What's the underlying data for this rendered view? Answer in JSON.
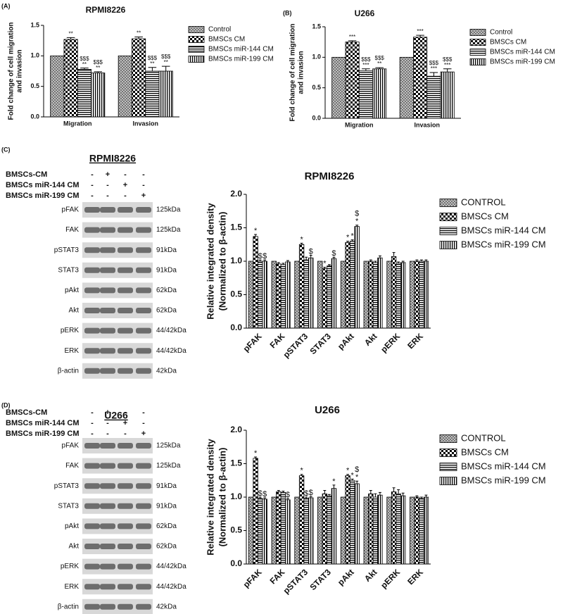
{
  "panels": [
    "(A)",
    "(B)",
    "(C)",
    "(D)"
  ],
  "chart_data": [
    {
      "type": "bar",
      "title": "RPMI8226",
      "ylabel": [
        "Fold change of cell migration",
        "and invasion"
      ],
      "categories": [
        "Migration",
        "Invasion"
      ],
      "ylim": [
        0,
        1.5
      ],
      "yticks": [
        {
          "value": 0,
          "label": "0.0"
        },
        0.5,
        {
          "value": 1,
          "label": "1.0"
        },
        1.5
      ],
      "legend": "right",
      "series": [
        {
          "name": "Control",
          "color": "#555555",
          "pattern": "crosshatch",
          "values": [
            1.0,
            1.0
          ]
        },
        {
          "name": "BMSCs CM",
          "color": "#000000",
          "pattern": "checker",
          "values": [
            1.27,
            1.28
          ],
          "errors": [
            0.03,
            0.03
          ],
          "annotations": [
            [
              "**"
            ],
            [
              "**"
            ]
          ]
        },
        {
          "name": "BMSCs miR-144 CM",
          "color": "#000000",
          "pattern": "hlines",
          "values": [
            0.78,
            0.75
          ],
          "errors": [
            0.02,
            0.06
          ],
          "annotations": [
            [
              "$$$",
              "**"
            ],
            [
              "$$$",
              "**"
            ]
          ]
        },
        {
          "name": "BMSCs miR-199 CM",
          "color": "#000000",
          "pattern": "vlines",
          "values": [
            0.72,
            0.75
          ],
          "errors": [
            0.02,
            0.08
          ],
          "annotations": [
            [
              "$$$",
              "**"
            ],
            [
              "$$$",
              "**"
            ]
          ]
        }
      ]
    },
    {
      "type": "bar",
      "title": "U266",
      "ylabel": [
        "Fold change of cell migration",
        "and invasion"
      ],
      "categories": [
        "Migration",
        "Invasion"
      ],
      "ylim": [
        0,
        1.5
      ],
      "yticks": [
        {
          "value": 0,
          "label": "0.0"
        },
        0.5,
        {
          "value": 1,
          "label": "1.0"
        },
        1.5
      ],
      "legend": "right",
      "series": [
        {
          "name": "Control",
          "color": "#555555",
          "pattern": "crosshatch",
          "values": [
            1.0,
            1.0
          ]
        },
        {
          "name": "BMSCs CM",
          "color": "#000000",
          "pattern": "checker",
          "values": [
            1.25,
            1.33
          ],
          "errors": [
            0.02,
            0.03
          ],
          "annotations": [
            [
              "***"
            ],
            [
              "***"
            ]
          ]
        },
        {
          "name": "BMSCs miR-144 CM",
          "color": "#000000",
          "pattern": "hlines",
          "values": [
            0.78,
            0.69
          ],
          "errors": [
            0.03,
            0.06
          ],
          "annotations": [
            [
              "$$$",
              "***"
            ],
            [
              "$$$",
              "***"
            ]
          ]
        },
        {
          "name": "BMSCs miR-199 CM",
          "color": "#000000",
          "pattern": "vlines",
          "values": [
            0.81,
            0.76
          ],
          "errors": [
            0.02,
            0.05
          ],
          "annotations": [
            [
              "$$$",
              "**"
            ],
            [
              "$$$",
              "***"
            ]
          ]
        }
      ]
    },
    {
      "type": "bar",
      "title": "RPMI8226",
      "ylabel": [
        "Relative integrated density",
        "(Normalized to β-actin)"
      ],
      "categories": [
        "pFAK",
        "FAK",
        "pSTAT3",
        "STAT3",
        "pAkt",
        "Akt",
        "pERK",
        "ERK"
      ],
      "ylim": [
        0,
        2
      ],
      "yticks": [
        {
          "value": 0,
          "label": "0.0"
        },
        0.5,
        {
          "value": 1,
          "label": "1.0"
        },
        1.5,
        {
          "value": 2,
          "label": "2.0"
        }
      ],
      "legend": "right",
      "series": [
        {
          "name": "CONTROL",
          "color": "#555555",
          "pattern": "crosshatch",
          "values": [
            1.0,
            1.0,
            1.0,
            1.0,
            1.0,
            1.0,
            1.0,
            1.0
          ]
        },
        {
          "name": "BMSCs CM",
          "color": "#000000",
          "pattern": "checker",
          "values": [
            1.37,
            0.96,
            1.25,
            0.89,
            1.28,
            1.0,
            1.07,
            1.0
          ],
          "errors": [
            0.03,
            0.02,
            0.02,
            0.02,
            0.02,
            0.02,
            0.06,
            0.02
          ],
          "annotations": [
            [
              "*"
            ],
            [],
            [
              "*"
            ],
            [
              "*"
            ],
            [
              "*"
            ],
            [],
            [],
            []
          ]
        },
        {
          "name": "BMSCs miR-144 CM",
          "color": "#000000",
          "pattern": "hlines",
          "values": [
            1.0,
            0.95,
            1.02,
            0.93,
            1.3,
            0.98,
            0.97,
            1.0
          ],
          "errors": [
            0.02,
            0.02,
            0.04,
            0.02,
            0.02,
            0.02,
            0.02,
            0.02
          ],
          "annotations": [
            [
              "$"
            ],
            [],
            [],
            [],
            [
              "*"
            ],
            [],
            [],
            []
          ]
        },
        {
          "name": "BMSCs miR-199 CM",
          "color": "#000000",
          "pattern": "vlines",
          "values": [
            1.0,
            0.99,
            1.05,
            1.04,
            1.52,
            1.05,
            0.98,
            1.0
          ],
          "errors": [
            0.02,
            0.02,
            0.04,
            0.02,
            0.02,
            0.03,
            0.02,
            0.02
          ],
          "annotations": [
            [
              "$"
            ],
            [],
            [
              "$"
            ],
            [
              "$"
            ],
            [
              "$",
              "*"
            ],
            [],
            [],
            []
          ]
        }
      ]
    },
    {
      "type": "bar",
      "title": "U266",
      "ylabel": [
        "Relative integrated density",
        "(Normalized to β-actin)"
      ],
      "categories": [
        "pFAK",
        "FAK",
        "pSTAT3",
        "STAT3",
        "pAkt",
        "Akt",
        "pERK",
        "ERK"
      ],
      "ylim": [
        0,
        2
      ],
      "yticks": [
        {
          "value": 0,
          "label": "0.0"
        },
        0.5,
        {
          "value": 1,
          "label": "1.0"
        },
        1.5,
        {
          "value": 2,
          "label": "2.0"
        }
      ],
      "legend": "right",
      "series": [
        {
          "name": "CONTROL",
          "color": "#555555",
          "pattern": "crosshatch",
          "values": [
            1.0,
            1.0,
            1.0,
            1.0,
            1.0,
            1.0,
            1.0,
            1.0
          ]
        },
        {
          "name": "BMSCs CM",
          "color": "#000000",
          "pattern": "checker",
          "values": [
            1.58,
            1.08,
            1.32,
            1.05,
            1.32,
            1.05,
            1.08,
            1.0
          ],
          "errors": [
            0.02,
            0.02,
            0.02,
            0.05,
            0.02,
            0.05,
            0.06,
            0.02
          ],
          "annotations": [
            [
              "*"
            ],
            [],
            [
              "*"
            ],
            [],
            [
              "*"
            ],
            [],
            [],
            []
          ]
        },
        {
          "name": "BMSCs miR-144 CM",
          "color": "#000000",
          "pattern": "hlines",
          "values": [
            0.98,
            1.07,
            0.98,
            1.02,
            1.25,
            1.0,
            1.05,
            0.98
          ],
          "errors": [
            0.02,
            0.02,
            0.02,
            0.02,
            0.02,
            0.05,
            0.06,
            0.02
          ],
          "annotations": [
            [
              "$"
            ],
            [],
            [
              "$"
            ],
            [],
            [
              "*"
            ],
            [],
            [],
            []
          ]
        },
        {
          "name": "BMSCs miR-199 CM",
          "color": "#000000",
          "pattern": "vlines",
          "values": [
            0.97,
            0.96,
            0.99,
            1.13,
            1.2,
            1.03,
            1.02,
            1.0
          ],
          "errors": [
            0.02,
            0.02,
            0.02,
            0.05,
            0.04,
            0.04,
            0.04,
            0.03
          ],
          "annotations": [
            [
              "$"
            ],
            [
              "$"
            ],
            [
              "$"
            ],
            [
              "*"
            ],
            [
              "$",
              "*"
            ],
            [],
            [],
            []
          ]
        }
      ]
    }
  ],
  "blots": [
    {
      "title": "RPMI8226",
      "conditions": [
        {
          "label": "BMSCs-CM",
          "signs": [
            "-",
            "+",
            "-",
            "-"
          ]
        },
        {
          "label": "BMSCs miR-144 CM",
          "signs": [
            "-",
            "-",
            "+",
            "-"
          ]
        },
        {
          "label": "BMSCs miR-199 CM",
          "signs": [
            "-",
            "-",
            "-",
            "+"
          ]
        }
      ],
      "bands": [
        {
          "name": "pFAK",
          "size": "125kDa"
        },
        {
          "name": "FAK",
          "size": "125kDa"
        },
        {
          "name": "pSTAT3",
          "size": "91kDa"
        },
        {
          "name": "STAT3",
          "size": "91kDa"
        },
        {
          "name": "pAkt",
          "size": "62kDa"
        },
        {
          "name": "Akt",
          "size": "62kDa"
        },
        {
          "name": "pERK",
          "size": "44/42kDa"
        },
        {
          "name": "ERK",
          "size": "44/42kDa"
        },
        {
          "name": "β-actin",
          "size": "42kDa"
        }
      ]
    },
    {
      "title": "U266",
      "conditions": [
        {
          "label": "BMSCs-CM",
          "signs": [
            "-",
            "+",
            "-",
            "-"
          ]
        },
        {
          "label": "BMSCs miR-144 CM",
          "signs": [
            "-",
            "-",
            "+",
            "-"
          ]
        },
        {
          "label": "BMSCs miR-199 CM",
          "signs": [
            "-",
            "-",
            "-",
            "+"
          ]
        }
      ],
      "bands": [
        {
          "name": "pFAK",
          "size": "125kDa"
        },
        {
          "name": "FAK",
          "size": "125kDa"
        },
        {
          "name": "pSTAT3",
          "size": "91kDa"
        },
        {
          "name": "STAT3",
          "size": "91kDa"
        },
        {
          "name": "pAkt",
          "size": "62kDa"
        },
        {
          "name": "Akt",
          "size": "62kDa"
        },
        {
          "name": "pERK",
          "size": "44/42kDa"
        },
        {
          "name": "ERK",
          "size": "44/42kDa"
        },
        {
          "name": "β-actin",
          "size": "42kDa"
        }
      ]
    }
  ]
}
